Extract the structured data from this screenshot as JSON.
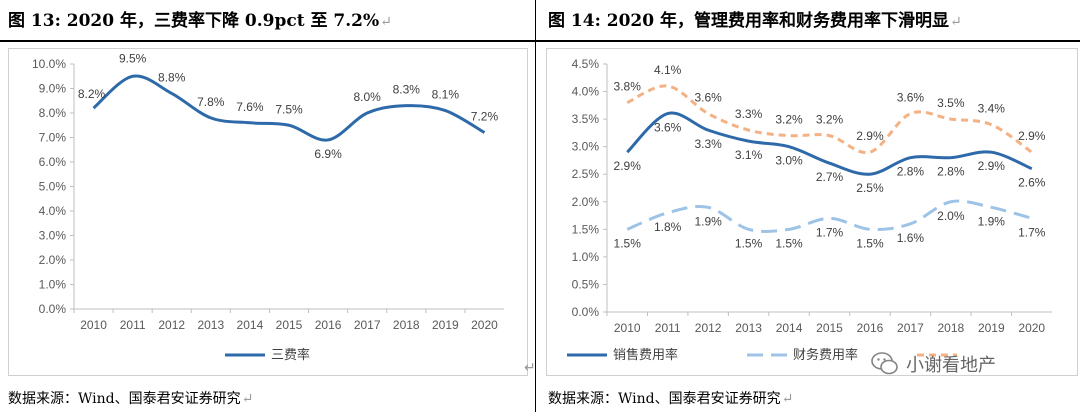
{
  "left": {
    "title": "图  13: 2020 年，三费率下降 0.9pct 至 7.2%",
    "source": "数据来源：Wind、国泰君安证券研究"
  },
  "right": {
    "title": "图  14: 2020 年，管理费用率和财务费用率下滑明显",
    "source": "数据来源：Wind、国泰君安证券研究"
  },
  "paragraph_mark": "↵",
  "watermark": {
    "text": "小谢看地产",
    "icon": "wechat-icon"
  },
  "colors": {
    "dark_blue": "#2e6aa9",
    "light_blue": "#9dc3e6",
    "orange": "#f4b183",
    "grid": "#d9d9d9",
    "axis": "#bfbfbf"
  },
  "chart_data": [
    {
      "type": "line",
      "x": [
        "2010",
        "2011",
        "2012",
        "2013",
        "2014",
        "2015",
        "2016",
        "2017",
        "2018",
        "2019",
        "2020"
      ],
      "y_ticks": [
        "0.0%",
        "1.0%",
        "2.0%",
        "3.0%",
        "4.0%",
        "5.0%",
        "6.0%",
        "7.0%",
        "8.0%",
        "9.0%",
        "10.0%"
      ],
      "ylim": [
        0,
        10
      ],
      "series": [
        {
          "name": "三费率",
          "values": [
            8.2,
            9.5,
            8.8,
            7.8,
            7.6,
            7.5,
            6.9,
            8.0,
            8.3,
            8.1,
            7.2
          ],
          "labels": [
            "8.2%",
            "9.5%",
            "8.8%",
            "7.8%",
            "7.6%",
            "7.5%",
            "6.9%",
            "8.0%",
            "8.3%",
            "8.1%",
            "7.2%"
          ],
          "color": "#2e6aa9",
          "dash": "solid"
        }
      ],
      "legend": "bottom",
      "grid": false
    },
    {
      "type": "line",
      "x": [
        "2010",
        "2011",
        "2012",
        "2013",
        "2014",
        "2015",
        "2016",
        "2017",
        "2018",
        "2019",
        "2020"
      ],
      "y_ticks": [
        "0.0%",
        "0.5%",
        "1.0%",
        "1.5%",
        "2.0%",
        "2.5%",
        "3.0%",
        "3.5%",
        "4.0%",
        "4.5%"
      ],
      "ylim": [
        0,
        4.5
      ],
      "series": [
        {
          "name": "销售费用率",
          "values": [
            2.9,
            3.6,
            3.3,
            3.1,
            3.0,
            2.7,
            2.5,
            2.8,
            2.8,
            2.9,
            2.6
          ],
          "labels": [
            "2.9%",
            "3.6%",
            "3.3%",
            "3.1%",
            "3.0%",
            "2.7%",
            "2.5%",
            "2.8%",
            "2.8%",
            "2.9%",
            "2.6%"
          ],
          "color": "#2e6aa9",
          "dash": "solid"
        },
        {
          "name": "财务费用率",
          "values": [
            1.5,
            1.8,
            1.9,
            1.5,
            1.5,
            1.7,
            1.5,
            1.6,
            2.0,
            1.9,
            1.7
          ],
          "labels": [
            "1.5%",
            "1.8%",
            "1.9%",
            "1.5%",
            "1.5%",
            "1.7%",
            "1.5%",
            "1.6%",
            "2.0%",
            "1.9%",
            "1.7%"
          ],
          "color": "#9dc3e6",
          "dash": "long"
        },
        {
          "name": "",
          "values": [
            3.8,
            4.1,
            3.6,
            3.3,
            3.2,
            3.2,
            2.9,
            3.6,
            3.5,
            3.4,
            2.9
          ],
          "labels": [
            "3.8%",
            "4.1%",
            "3.6%",
            "3.3%",
            "3.2%",
            "3.2%",
            "2.9%",
            "3.6%",
            "3.5%",
            "3.4%",
            "2.9%"
          ],
          "color": "#f4b183",
          "dash": "short"
        }
      ],
      "legend": "bottom",
      "grid": false
    }
  ]
}
